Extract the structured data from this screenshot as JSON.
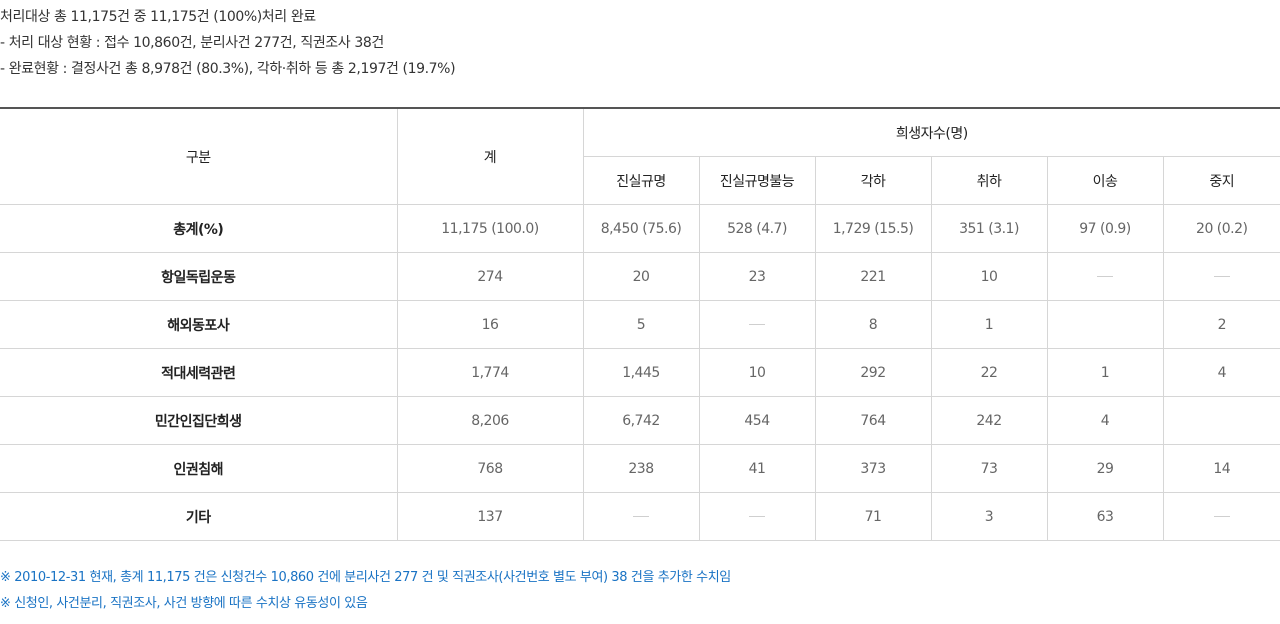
{
  "summary": {
    "line1": "처리대상 총 11,175건 중 11,175건 (100%)처리 완료",
    "line2": " - 처리 대상 현황 : 접수 10,860건, 분리사건 277건, 직권조사 38건",
    "line3": " - 완료현황 : 결정사건 총 8,978건 (80.3%), 각하·취하 등 총 2,197건 (19.7%)"
  },
  "table": {
    "header": {
      "category": "구분",
      "total": "계",
      "victims": "희생자수(명)",
      "sub": [
        "진실규명",
        "진실규명불능",
        "각하",
        "취하",
        "이송",
        "중지"
      ]
    },
    "rows": [
      {
        "label": "총계(%)",
        "cells": [
          "11,175 (100.0)",
          "8,450 (75.6)",
          "528 (4.7)",
          "1,729 (15.5)",
          "351 (3.1)",
          "97 (0.9)",
          "20 (0.2)"
        ]
      },
      {
        "label": "항일독립운동",
        "cells": [
          "274",
          "20",
          "23",
          "221",
          "10",
          "—",
          "—"
        ]
      },
      {
        "label": "해외동포사",
        "cells": [
          "16",
          "5",
          "—",
          "8",
          "1",
          "",
          "2"
        ]
      },
      {
        "label": "적대세력관련",
        "cells": [
          "1,774",
          "1,445",
          "10",
          "292",
          "22",
          "1",
          "4"
        ]
      },
      {
        "label": "민간인집단희생",
        "cells": [
          "8,206",
          "6,742",
          "454",
          "764",
          "242",
          "4",
          ""
        ]
      },
      {
        "label": "인권침해",
        "cells": [
          "768",
          "238",
          "41",
          "373",
          "73",
          "29",
          "14"
        ]
      },
      {
        "label": "기타",
        "cells": [
          "137",
          "—",
          "—",
          "71",
          "3",
          "63",
          "—"
        ]
      }
    ]
  },
  "notes": [
    "※ 2010-12-31 현재, 총계 11,175 건은 신청건수 10,860 건에 분리사건 277 건 및 직권조사(사건번호 별도 부여) 38 건을 추가한 수치임",
    "※ 신청인, 사건분리, 직권조사, 사건 방향에 따른 수치상 유동성이 있음"
  ],
  "colors": {
    "note_text": "#1a73c4",
    "table_top_border": "#555555",
    "grid_line": "#d6d6d6"
  }
}
